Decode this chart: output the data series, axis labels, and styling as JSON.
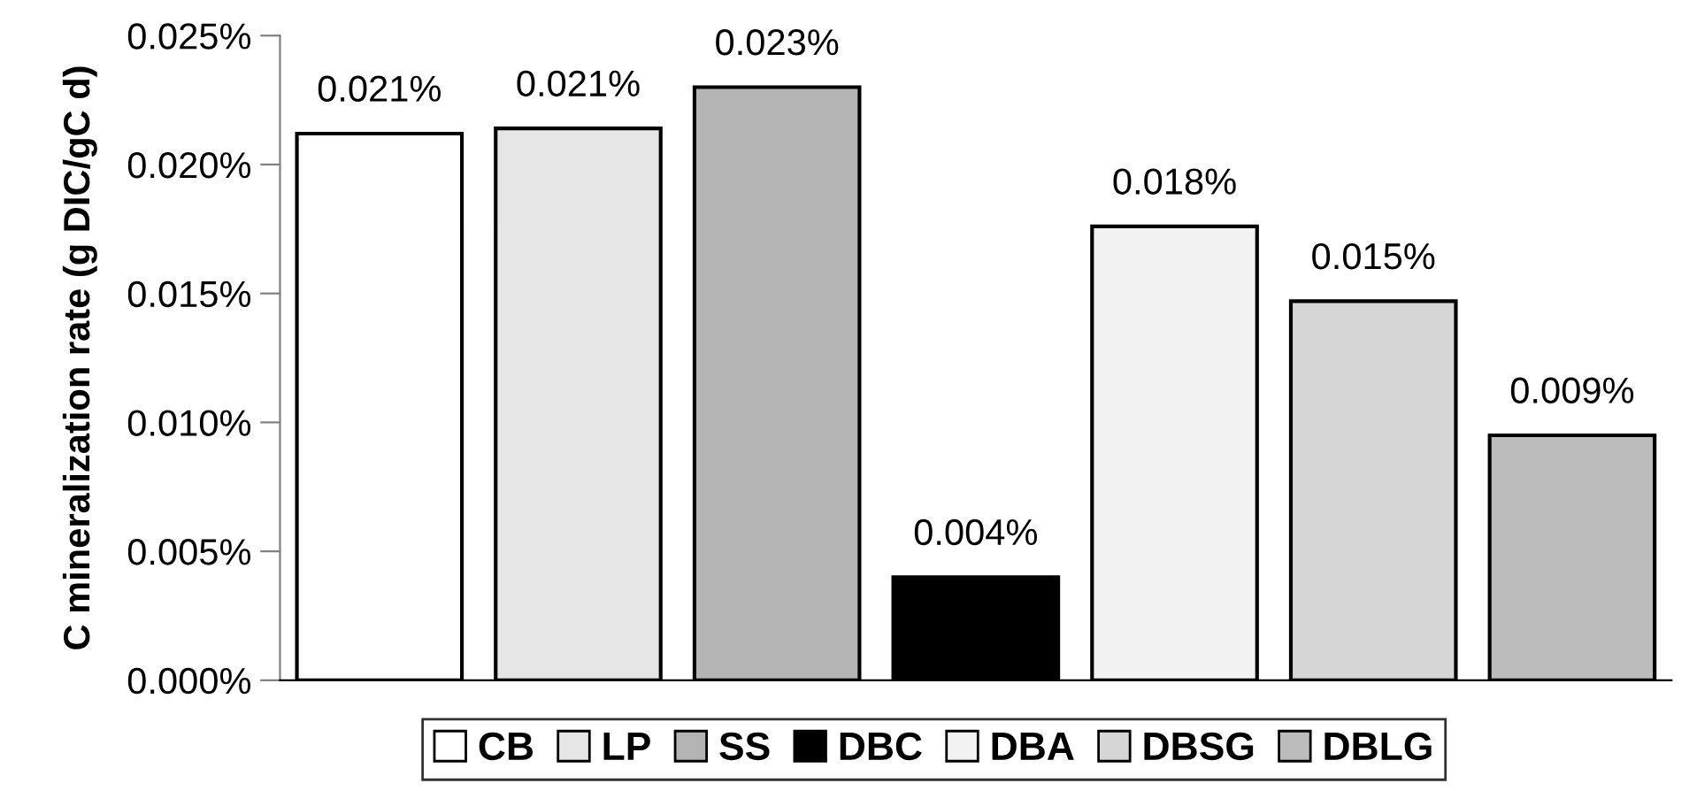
{
  "chart_data": {
    "type": "bar",
    "ylabel": "C mineralization rate (g DIC/gC d)",
    "categories": [
      null,
      null,
      null,
      null,
      null,
      null,
      null
    ],
    "series": [
      {
        "name": "CB",
        "color": "#ffffff",
        "values": [
          0.0212,
          null,
          null,
          null,
          null,
          null,
          null
        ],
        "value_labels": [
          "0.021%",
          null,
          null,
          null,
          null,
          null,
          null
        ]
      },
      {
        "name": "LP",
        "color": "#e6e6e6",
        "values": [
          null,
          0.0214,
          null,
          null,
          null,
          null,
          null
        ],
        "value_labels": [
          null,
          "0.021%",
          null,
          null,
          null,
          null,
          null
        ]
      },
      {
        "name": "SS",
        "color": "#b4b4b4",
        "values": [
          null,
          null,
          0.023,
          null,
          null,
          null,
          null
        ],
        "value_labels": [
          null,
          null,
          "0.023%",
          null,
          null,
          null,
          null
        ]
      },
      {
        "name": "DBC",
        "color": "#000000",
        "values": [
          null,
          null,
          null,
          0.004,
          null,
          null,
          null
        ],
        "value_labels": [
          null,
          null,
          null,
          "0.004%",
          null,
          null,
          null
        ]
      },
      {
        "name": "DBA",
        "color": "#f2f2f2",
        "values": [
          null,
          null,
          null,
          null,
          0.0176,
          null,
          null
        ],
        "value_labels": [
          null,
          null,
          null,
          null,
          "0.018%",
          null,
          null
        ]
      },
      {
        "name": "DBSG",
        "color": "#d6d6d6",
        "values": [
          null,
          null,
          null,
          null,
          null,
          0.0147,
          null
        ],
        "value_labels": [
          null,
          null,
          null,
          null,
          null,
          "0.015%",
          null
        ]
      },
      {
        "name": "DBLG",
        "color": "#bcbcbc",
        "values": [
          null,
          null,
          null,
          null,
          null,
          null,
          0.0095
        ],
        "value_labels": [
          null,
          null,
          null,
          null,
          null,
          null,
          "0.009%"
        ]
      }
    ],
    "ylim": [
      0,
      0.025
    ],
    "yticks": [
      {
        "value": 0,
        "label": "0.000%"
      },
      {
        "value": 0.005,
        "label": "0.005%"
      },
      {
        "value": 0.01,
        "label": "0.010%"
      },
      {
        "value": 0.015,
        "label": "0.015%"
      },
      {
        "value": 0.02,
        "label": "0.020%"
      },
      {
        "value": 0.025,
        "label": "0.025%"
      }
    ],
    "grid": false,
    "legend": "bottom"
  }
}
